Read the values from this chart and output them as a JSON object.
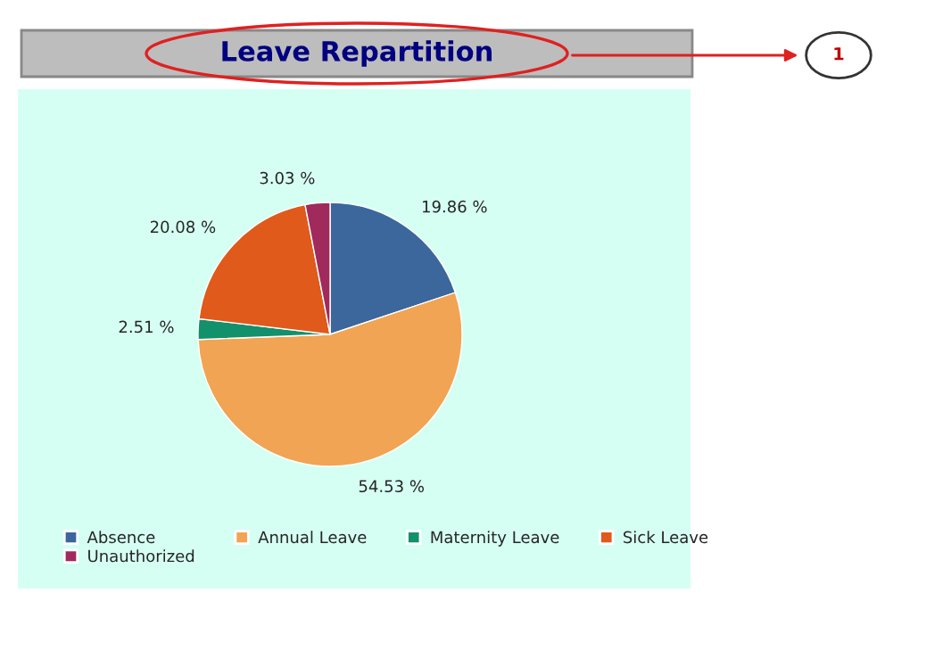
{
  "chart_data": {
    "type": "pie",
    "title": "Leave Repartition",
    "categories": [
      "Absence",
      "Annual Leave",
      "Maternity Leave",
      "Sick Leave",
      "Unauthorized"
    ],
    "values": [
      19.86,
      54.53,
      2.51,
      20.08,
      3.03
    ],
    "colors": [
      "#3b679c",
      "#f0a454",
      "#13906c",
      "#e05a1c",
      "#a02a5c"
    ],
    "value_labels": [
      "19.86 %",
      "54.53 %",
      "2.51 %",
      "20.08 %",
      "3.03 %"
    ],
    "legend": "bottom",
    "annotations": [
      "1"
    ]
  }
}
